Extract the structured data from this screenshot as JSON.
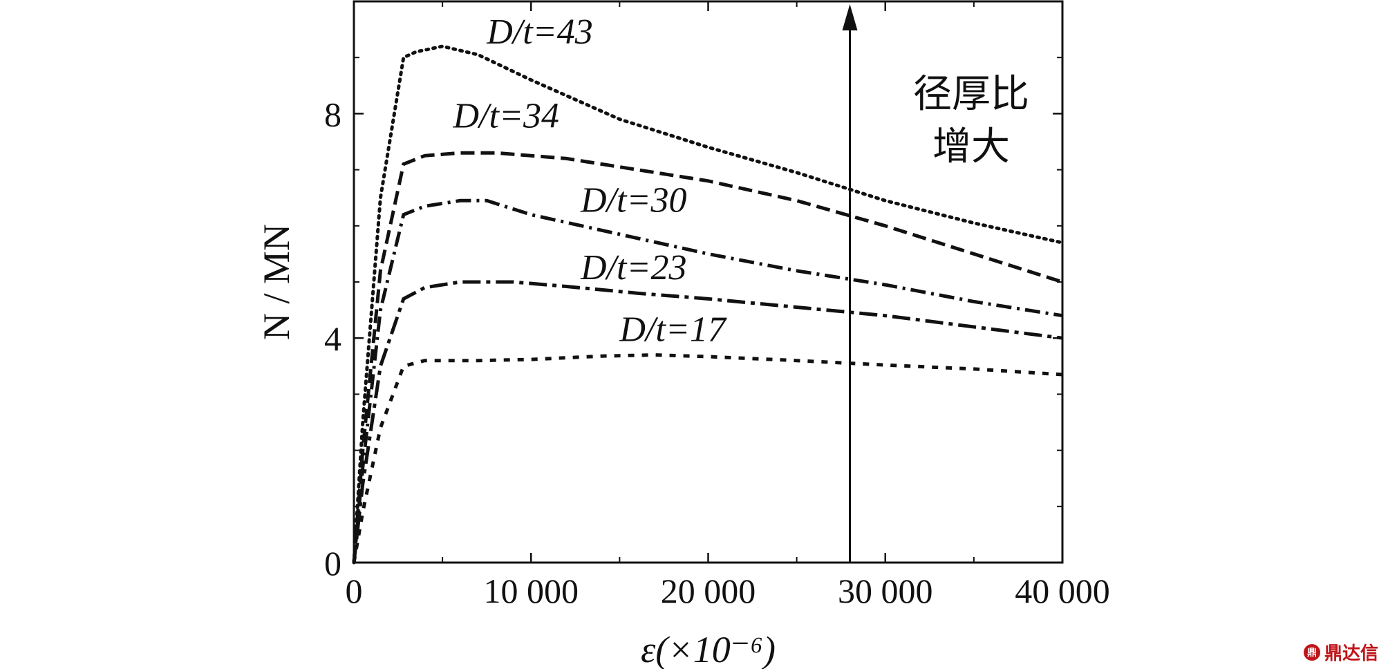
{
  "chart_data": {
    "type": "line",
    "xlabel": "ε(×10⁻⁶)",
    "ylabel": "N / MN",
    "xlim": [
      0,
      40000
    ],
    "ylim": [
      0,
      10
    ],
    "x_ticks": [
      0,
      10000,
      20000,
      30000,
      40000
    ],
    "x_tick_labels": [
      "0",
      "10 000",
      "20 000",
      "30 000",
      "40 000"
    ],
    "y_ticks": [
      0,
      4,
      8
    ],
    "y_tick_labels": [
      "0",
      "4",
      "8"
    ],
    "grid": false,
    "series": [
      {
        "name": "D/t=43",
        "x": [
          0,
          500,
          1500,
          2800,
          3500,
          5000,
          7000,
          10000,
          15000,
          20000,
          25000,
          30000,
          35000,
          40000
        ],
        "y": [
          0,
          2.5,
          6.5,
          9.0,
          9.1,
          9.2,
          9.05,
          8.6,
          7.9,
          7.4,
          6.95,
          6.45,
          6.05,
          5.7
        ]
      },
      {
        "name": "D/t=34",
        "x": [
          0,
          500,
          1500,
          2800,
          4000,
          6000,
          8000,
          12000,
          16000,
          20000,
          25000,
          30000,
          35000,
          40000
        ],
        "y": [
          0,
          2.0,
          5.2,
          7.1,
          7.25,
          7.3,
          7.3,
          7.2,
          7.0,
          6.8,
          6.45,
          6.0,
          5.5,
          5.0
        ]
      },
      {
        "name": "D/t=30",
        "x": [
          0,
          500,
          1500,
          2800,
          4000,
          6000,
          7500,
          10000,
          15000,
          20000,
          25000,
          30000,
          35000,
          40000
        ],
        "y": [
          0,
          1.7,
          4.5,
          6.2,
          6.35,
          6.45,
          6.45,
          6.2,
          5.85,
          5.5,
          5.2,
          4.95,
          4.65,
          4.4
        ]
      },
      {
        "name": "D/t=23",
        "x": [
          0,
          500,
          1500,
          2800,
          4000,
          6000,
          9000,
          12000,
          16000,
          20000,
          25000,
          30000,
          35000,
          40000
        ],
        "y": [
          0,
          1.4,
          3.5,
          4.7,
          4.9,
          5.0,
          5.0,
          4.92,
          4.8,
          4.7,
          4.55,
          4.4,
          4.2,
          4.0
        ]
      },
      {
        "name": "D/t=17",
        "x": [
          0,
          500,
          1500,
          2800,
          4000,
          7000,
          10000,
          14000,
          17000,
          20000,
          25000,
          30000,
          35000,
          40000
        ],
        "y": [
          0,
          0.9,
          2.4,
          3.5,
          3.6,
          3.6,
          3.62,
          3.68,
          3.7,
          3.67,
          3.6,
          3.52,
          3.45,
          3.35
        ]
      }
    ],
    "series_labels": [
      "D/t=43",
      "D/t=34",
      "D/t=30",
      "D/t=23",
      "D/t=17"
    ],
    "annotation": {
      "lines": [
        "径厚比",
        "增大"
      ],
      "arrow_x": 28000
    }
  },
  "watermark": {
    "text": "鼎达信",
    "logo": "鼎"
  }
}
